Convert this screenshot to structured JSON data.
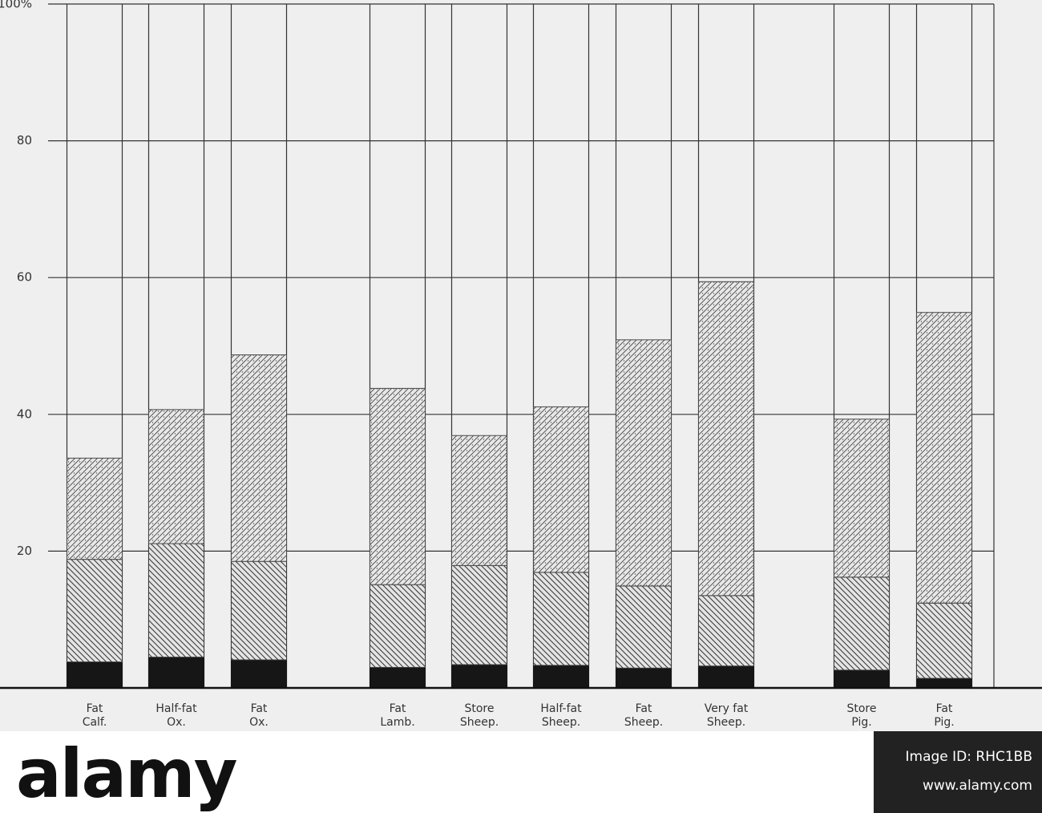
{
  "chart_data": {
    "type": "stacked_bar",
    "categories": [
      "Fat\nCalf.",
      "Half-fat\nOx.",
      "Fat\nOx.",
      "Fat\nLamb.",
      "Store\nSheep.",
      "Half-fat\nSheep.",
      "Fat\nSheep.",
      "Very fat\nSheep.",
      "Store\nPig.",
      "Fat\nPig."
    ],
    "series": [
      {
        "color": "#161616",
        "hatch": "solid",
        "values": [
          3.8,
          4.5,
          4.1,
          3.0,
          3.4,
          3.3,
          2.9,
          3.2,
          2.6,
          1.4
        ]
      },
      {
        "color": "#3a3a3a",
        "hatch": "back-diagonal",
        "values": [
          15.0,
          16.6,
          14.4,
          12.1,
          14.5,
          13.6,
          12.0,
          10.3,
          13.6,
          11.0
        ]
      },
      {
        "color": "#4a4a4a",
        "hatch": "dotted-diagonal",
        "values": [
          14.8,
          19.6,
          30.2,
          28.7,
          19.0,
          24.2,
          36.0,
          45.9,
          23.1,
          42.5
        ]
      }
    ],
    "ylim": [
      0,
      100
    ],
    "yticks": [
      20,
      40,
      60,
      80,
      {
        "value": 100,
        "label": "100%"
      }
    ],
    "grid": true
  },
  "footer": {
    "logo": "alamy",
    "image_id": "Image ID: RHC1BB",
    "url": "www.alamy.com"
  }
}
